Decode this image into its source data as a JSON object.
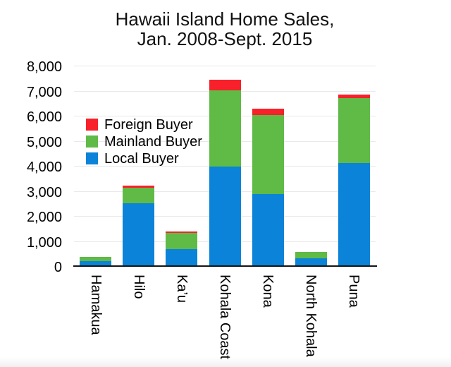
{
  "page": {
    "background": "#ffffff"
  },
  "chart_data": {
    "type": "bar",
    "stacked": true,
    "title": "Hawaii Island Home Sales,",
    "title_line2": "Jan. 2008-Sept. 2015",
    "categories": [
      "Hamakua",
      "Hilo",
      "Ka’u",
      "Kohala Coast",
      "Kona",
      "North Kohala",
      "Puna"
    ],
    "series": [
      {
        "name": "Local Buyer",
        "color": "#0a83d8",
        "values": [
          200,
          2510,
          680,
          3980,
          2880,
          310,
          4100
        ]
      },
      {
        "name": "Mainland Buyer",
        "color": "#5fba46",
        "values": [
          170,
          620,
          650,
          3040,
          3150,
          255,
          2600
        ]
      },
      {
        "name": "Foreign Buyer",
        "color": "#f8202a",
        "values": [
          0,
          80,
          60,
          420,
          250,
          0,
          150
        ]
      }
    ],
    "totals": [
      370,
      3210,
      1390,
      7440,
      6280,
      565,
      6850
    ],
    "xlabel": "",
    "ylabel": "",
    "ylim": [
      0,
      8000
    ],
    "ytick_step": 1000,
    "ytick_labels": [
      "0",
      "1,000",
      "2,000",
      "3,000",
      "4,000",
      "5,000",
      "6,000",
      "7,000",
      "8,000"
    ],
    "grid": true,
    "legend_position": "inside-upper-left",
    "legend_order": [
      "Foreign Buyer",
      "Mainland Buyer",
      "Local Buyer"
    ],
    "colors": {
      "gridline": "#e9e9e9",
      "axis": "#141414",
      "text": "#000000"
    }
  }
}
